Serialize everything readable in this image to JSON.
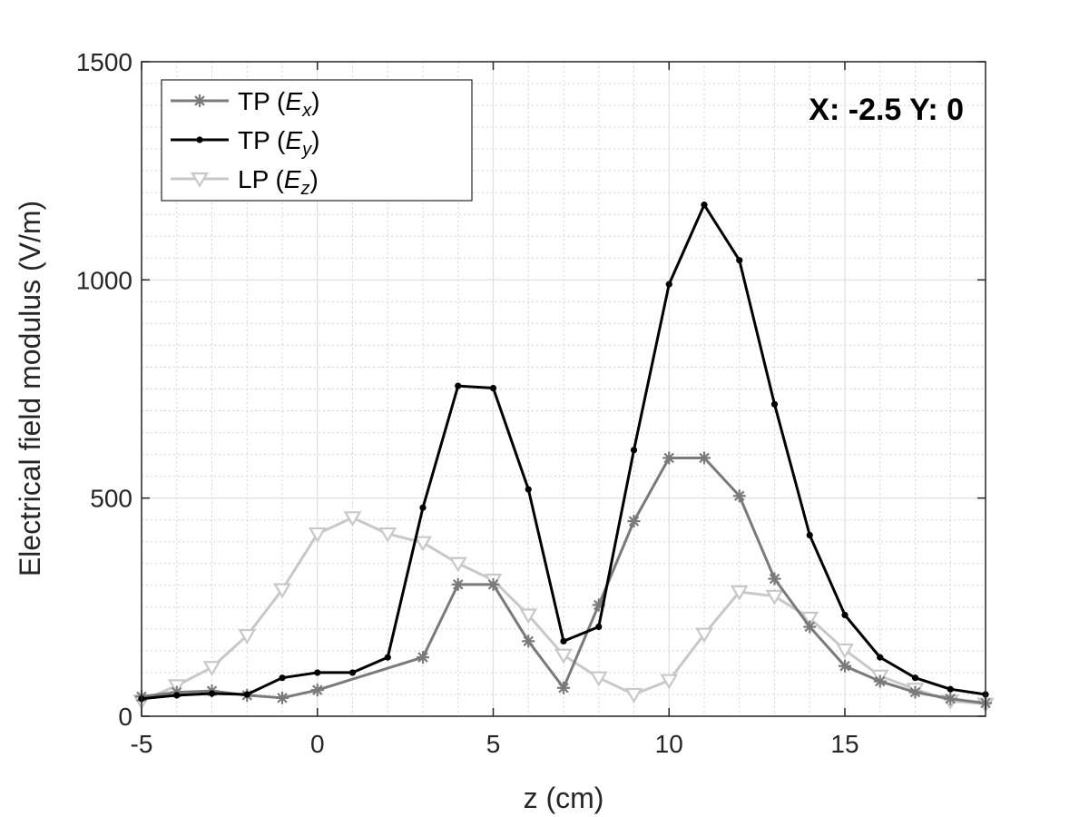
{
  "chart_data": {
    "type": "line",
    "xlabel": "z (cm)",
    "ylabel": "Electrical field modulus (V/m)",
    "annotation": "X: -2.5 Y: 0",
    "xlim": [
      -5,
      19
    ],
    "ylim": [
      0,
      1500
    ],
    "xticks": [
      -5,
      0,
      5,
      10,
      15
    ],
    "yticks": [
      0,
      500,
      1000,
      1500
    ],
    "grid": true,
    "minor_grid": true,
    "legend_position": "top-left",
    "series": [
      {
        "name": "TP (Ex)",
        "legend_prefix": "TP (",
        "legend_var": "E",
        "legend_sub": "x",
        "legend_suffix": ")",
        "color": "#7a7a7a",
        "marker": "asterisk",
        "x": [
          -5,
          -4,
          -3,
          -2,
          -1,
          0,
          3,
          4,
          5,
          6,
          7,
          8,
          9,
          10,
          11,
          12,
          13,
          14,
          15,
          16,
          17,
          18,
          19
        ],
        "y": [
          45,
          55,
          58,
          48,
          42,
          60,
          135,
          302,
          302,
          172,
          65,
          255,
          447,
          592,
          592,
          505,
          315,
          205,
          115,
          80,
          55,
          40,
          30
        ]
      },
      {
        "name": "TP (Ey)",
        "legend_prefix": "TP (",
        "legend_var": "E",
        "legend_sub": "y",
        "legend_suffix": ")",
        "color": "#000000",
        "marker": "dot",
        "x": [
          -5,
          -4,
          -3,
          -2,
          -1,
          0,
          1,
          2,
          3,
          4,
          5,
          6,
          7,
          8,
          9,
          10,
          11,
          12,
          13,
          14,
          15,
          16,
          17,
          18,
          19
        ],
        "y": [
          40,
          48,
          52,
          50,
          88,
          100,
          100,
          135,
          478,
          757,
          752,
          520,
          172,
          205,
          610,
          990,
          1172,
          1045,
          715,
          415,
          232,
          135,
          88,
          62,
          50
        ]
      },
      {
        "name": "LP (Ez)",
        "legend_prefix": "LP (",
        "legend_var": "E",
        "legend_sub": "z",
        "legend_suffix": ")",
        "color": "#c8c8c8",
        "marker": "triangle-down",
        "x": [
          -5,
          -4,
          -3,
          -2,
          -1,
          0,
          1,
          2,
          3,
          4,
          5,
          6,
          7,
          8,
          9,
          10,
          11,
          12,
          13,
          14,
          15,
          16,
          17,
          18,
          19
        ],
        "y": [
          35,
          70,
          112,
          185,
          290,
          418,
          455,
          418,
          398,
          350,
          312,
          232,
          140,
          88,
          50,
          82,
          188,
          285,
          275,
          225,
          152,
          92,
          62,
          35,
          28
        ]
      }
    ]
  }
}
